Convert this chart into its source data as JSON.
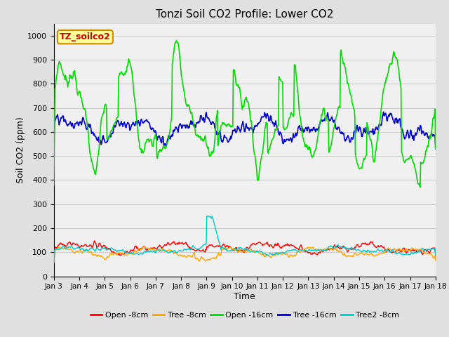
{
  "title": "Tonzi Soil CO2 Profile: Lower CO2",
  "xlabel": "Time",
  "ylabel": "Soil CO2 (ppm)",
  "ylim": [
    0,
    1050
  ],
  "yticks": [
    0,
    100,
    200,
    300,
    400,
    500,
    600,
    700,
    800,
    900,
    1000
  ],
  "legend_entries": [
    "Open -8cm",
    "Tree -8cm",
    "Open -16cm",
    "Tree -16cm",
    "Tree2 -8cm"
  ],
  "legend_colors": [
    "#ff0000",
    "#ffa500",
    "#00dd00",
    "#0000cc",
    "#00cccc"
  ],
  "text_box_label": "TZ_soilco2",
  "text_box_bg": "#ffff99",
  "text_box_edge": "#cc8800",
  "text_box_text": "#cc0000",
  "n_points": 720,
  "x_start": 0,
  "x_end": 15,
  "xtick_positions": [
    0,
    1,
    2,
    3,
    4,
    5,
    6,
    7,
    8,
    9,
    10,
    11,
    12,
    13,
    14,
    15
  ],
  "xtick_labels": [
    "Jan 3",
    "Jan 4",
    "Jan 5",
    "Jan 6",
    "Jan 7",
    "Jan 8",
    "Jan 9",
    "Jan 10",
    "Jan 11",
    "Jan 12",
    "Jan 13",
    "Jan 14",
    "Jan 15",
    "Jan 16",
    "Jan 17",
    "Jan 18"
  ],
  "fig_width": 6.4,
  "fig_height": 4.8,
  "dpi": 100
}
